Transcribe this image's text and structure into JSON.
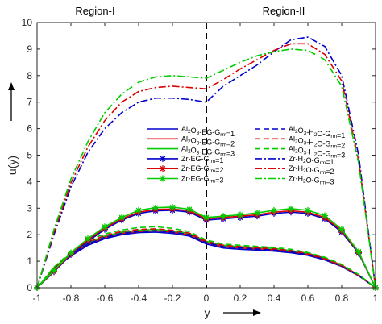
{
  "chart_data": {
    "type": "line",
    "title": "",
    "xlabel": "y",
    "ylabel": "u(y)",
    "xlim": [
      -1,
      1
    ],
    "ylim": [
      0,
      10
    ],
    "xticks": [
      "-1",
      "-0.8",
      "-0.6",
      "-0.4",
      "-0.2",
      "0",
      "0.2",
      "0.4",
      "0.6",
      "0.8",
      "1"
    ],
    "yticks": [
      "0",
      "1",
      "2",
      "3",
      "4",
      "5",
      "6",
      "7",
      "8",
      "9",
      "10"
    ],
    "regions": [
      "Region-I",
      "Region-II"
    ],
    "legend_position": "center",
    "x": [
      -1,
      -0.9,
      -0.8,
      -0.7,
      -0.6,
      -0.5,
      -0.4,
      -0.3,
      -0.2,
      -0.1,
      0,
      0.1,
      0.2,
      0.3,
      0.4,
      0.5,
      0.6,
      0.7,
      0.8,
      0.9,
      1
    ],
    "series": [
      {
        "name": "Al2O3-EG-Grm=1",
        "color": "#0000CC",
        "style": "solid",
        "marker": "none",
        "values": [
          0,
          0.7,
          1.2,
          1.6,
          1.85,
          2.0,
          2.08,
          2.1,
          2.05,
          1.95,
          1.65,
          1.5,
          1.45,
          1.42,
          1.38,
          1.32,
          1.22,
          1.05,
          0.8,
          0.45,
          0
        ]
      },
      {
        "name": "Al2O3-EG-Grm=2",
        "color": "#DD0000",
        "style": "solid",
        "marker": "none",
        "values": [
          0,
          0.72,
          1.25,
          1.65,
          1.9,
          2.05,
          2.12,
          2.15,
          2.1,
          2.0,
          1.7,
          1.55,
          1.5,
          1.47,
          1.43,
          1.36,
          1.26,
          1.08,
          0.82,
          0.46,
          0
        ]
      },
      {
        "name": "Al2O3-EG-Grm=3",
        "color": "#00CC00",
        "style": "solid",
        "marker": "none",
        "values": [
          0,
          0.75,
          1.3,
          1.7,
          1.95,
          2.1,
          2.17,
          2.2,
          2.15,
          2.05,
          1.75,
          1.6,
          1.55,
          1.52,
          1.48,
          1.4,
          1.3,
          1.12,
          0.85,
          0.48,
          0
        ]
      },
      {
        "name": "Al2O3-H2O-Grm=1",
        "color": "#0000CC",
        "style": "dashed",
        "marker": "none",
        "values": [
          0,
          0.72,
          1.25,
          1.65,
          1.9,
          2.05,
          2.13,
          2.15,
          2.1,
          2.0,
          1.7,
          1.55,
          1.5,
          1.46,
          1.42,
          1.36,
          1.25,
          1.08,
          0.82,
          0.46,
          0
        ]
      },
      {
        "name": "Al2O3-H2O-Grm=2",
        "color": "#DD0000",
        "style": "dashed",
        "marker": "none",
        "values": [
          0,
          0.75,
          1.3,
          1.72,
          1.97,
          2.12,
          2.2,
          2.22,
          2.17,
          2.06,
          1.75,
          1.6,
          1.55,
          1.51,
          1.47,
          1.4,
          1.29,
          1.11,
          0.85,
          0.48,
          0
        ]
      },
      {
        "name": "Al2O3-H2O-Grm=3",
        "color": "#00CC00",
        "style": "dashed",
        "marker": "none",
        "values": [
          0,
          0.78,
          1.35,
          1.78,
          2.03,
          2.18,
          2.27,
          2.3,
          2.24,
          2.12,
          1.8,
          1.65,
          1.6,
          1.56,
          1.52,
          1.45,
          1.33,
          1.15,
          0.88,
          0.5,
          0
        ]
      },
      {
        "name": "Zr-EG-Grm=1",
        "color": "#0000CC",
        "style": "solid",
        "marker": "asterisk",
        "values": [
          0,
          0.6,
          1.25,
          1.75,
          2.2,
          2.55,
          2.8,
          2.9,
          2.92,
          2.85,
          2.55,
          2.6,
          2.65,
          2.7,
          2.8,
          2.85,
          2.8,
          2.6,
          2.1,
          1.3,
          0
        ]
      },
      {
        "name": "Zr-EG-Grm=2",
        "color": "#DD0000",
        "style": "solid",
        "marker": "asterisk",
        "values": [
          0,
          0.62,
          1.28,
          1.8,
          2.25,
          2.6,
          2.85,
          2.95,
          2.97,
          2.9,
          2.6,
          2.65,
          2.7,
          2.75,
          2.85,
          2.9,
          2.85,
          2.65,
          2.15,
          1.33,
          0
        ]
      },
      {
        "name": "Zr-EG-Grm=3",
        "color": "#00CC00",
        "style": "solid",
        "marker": "asterisk",
        "values": [
          0,
          0.65,
          1.32,
          1.85,
          2.3,
          2.65,
          2.92,
          3.02,
          3.04,
          2.96,
          2.65,
          2.7,
          2.75,
          2.82,
          2.92,
          2.98,
          2.92,
          2.72,
          2.2,
          1.36,
          0
        ]
      },
      {
        "name": "Zr-H2O-Grm=1",
        "color": "#0000CC",
        "style": "dashdot",
        "marker": "none",
        "values": [
          0,
          2.0,
          3.8,
          5.1,
          6.0,
          6.6,
          7.0,
          7.15,
          7.15,
          7.1,
          7.0,
          7.6,
          8.0,
          8.4,
          8.9,
          9.35,
          9.45,
          9.1,
          8.0,
          5.0,
          0
        ]
      },
      {
        "name": "Zr-H2O-Grm=2",
        "color": "#DD0000",
        "style": "dashdot",
        "marker": "none",
        "values": [
          0,
          2.1,
          3.95,
          5.3,
          6.3,
          7.0,
          7.4,
          7.55,
          7.6,
          7.55,
          7.5,
          7.85,
          8.25,
          8.6,
          8.95,
          9.2,
          9.2,
          8.8,
          7.8,
          4.8,
          0
        ]
      },
      {
        "name": "Zr-H2O-Grm=3",
        "color": "#00CC00",
        "style": "dashdot",
        "marker": "none",
        "values": [
          0,
          2.2,
          4.1,
          5.5,
          6.6,
          7.3,
          7.75,
          7.95,
          8.0,
          7.95,
          7.9,
          8.2,
          8.5,
          8.75,
          8.9,
          9.0,
          8.95,
          8.6,
          7.6,
          4.7,
          0
        ]
      }
    ],
    "legend": [
      {
        "series": 0,
        "prefix": "Al",
        "s1": "2",
        "mid1": "O",
        "s2": "3",
        "rest": "-EG-G",
        "s3": "rm",
        "tail": "=1"
      },
      {
        "series": 3,
        "prefix": "Al",
        "s1": "2",
        "mid1": "O",
        "s2": "3",
        "rest": "-H",
        "s3": "2",
        "tail": "O-G",
        "s4": "rm",
        "tail2": "=1"
      },
      {
        "series": 1,
        "prefix": "Al",
        "s1": "2",
        "mid1": "O",
        "s2": "3",
        "rest": "-EG-G",
        "s3": "rm",
        "tail": "=2"
      },
      {
        "series": 4,
        "prefix": "Al",
        "s1": "2",
        "mid1": "O",
        "s2": "3",
        "rest": "-H",
        "s3": "2",
        "tail": "O-G",
        "s4": "rm",
        "tail2": "=2"
      },
      {
        "series": 2,
        "prefix": "Al",
        "s1": "2",
        "mid1": "O",
        "s2": "3",
        "rest": "-EG-G",
        "s3": "rm",
        "tail": "=3"
      },
      {
        "series": 5,
        "prefix": "Al",
        "s1": "2",
        "mid1": "O",
        "s2": "3",
        "rest": "-H",
        "s3": "2",
        "tail": "O-G",
        "s4": "rm",
        "tail2": "=3"
      },
      {
        "series": 6,
        "prefix": "Zr-EG-G",
        "s1": "rm",
        "mid1": "=1"
      },
      {
        "series": 9,
        "prefix": "Zr-H",
        "s1": "2",
        "mid1": "O-G",
        "s2": "rm",
        "rest": "=1"
      },
      {
        "series": 7,
        "prefix": "Zr-EG-G",
        "s1": "rm",
        "mid1": "=2"
      },
      {
        "series": 10,
        "prefix": "Zr-H",
        "s1": "2",
        "mid1": "O-G",
        "s2": "rm",
        "rest": "=2"
      },
      {
        "series": 8,
        "prefix": "Zr-EG-G",
        "s1": "rm",
        "mid1": "=3"
      },
      {
        "series": 11,
        "prefix": "Zr-H",
        "s1": "2",
        "mid1": "O-G",
        "s2": "rm",
        "rest": "=3"
      }
    ]
  }
}
